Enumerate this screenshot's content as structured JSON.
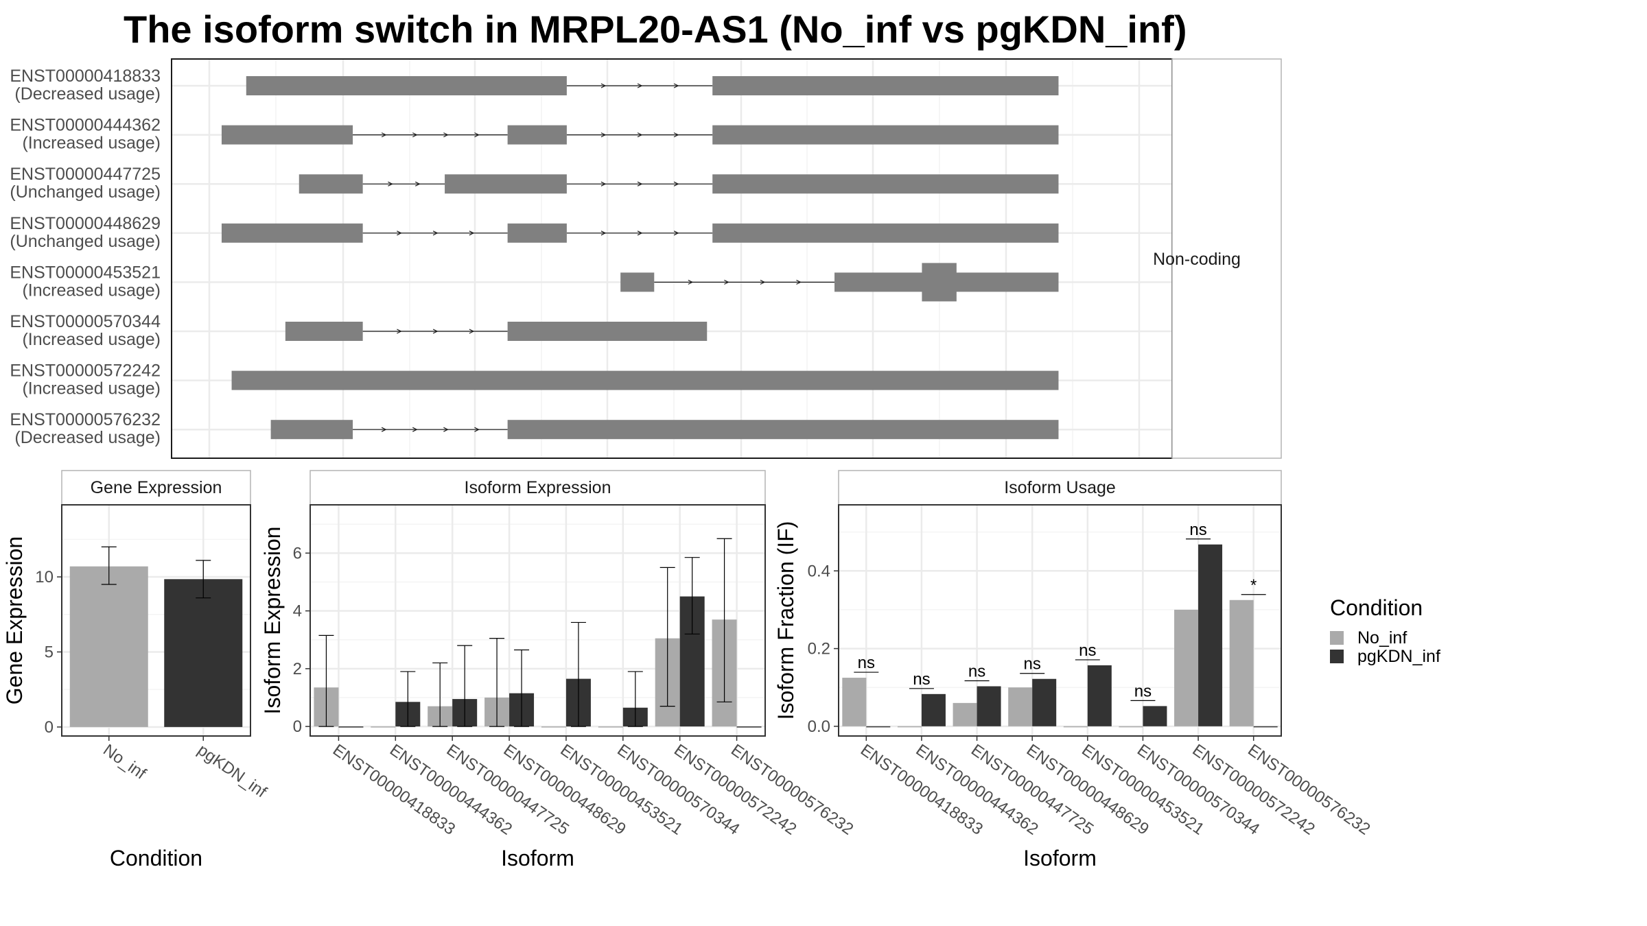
{
  "title": "The isoform switch in MRPL20-AS1 (No_inf vs pgKDN_inf)",
  "colors": {
    "No_inf": "#aaaaaa",
    "pgKDN_inf": "#333333",
    "transcript": "#808080",
    "grid": "#ebebeb",
    "panel_border": "#333333",
    "strip_border": "#b3b3b3"
  },
  "legend": {
    "title": "Condition",
    "items": [
      "No_inf",
      "pgKDN_inf"
    ]
  },
  "chart_data": [
    {
      "type": "transcript-structure",
      "name": "isoform-structures",
      "x_range": [
        0,
        1000
      ],
      "facet_label": "Non-coding",
      "isoforms": [
        {
          "id": "ENST00000418833",
          "usage": "(Decreased usage)",
          "exons": [
            [
              33,
              385
            ],
            [
              545,
              925
            ]
          ]
        },
        {
          "id": "ENST00000444362",
          "usage": "(Increased usage)",
          "exons": [
            [
              6,
              150
            ],
            [
              320,
              385
            ],
            [
              545,
              925
            ]
          ]
        },
        {
          "id": "ENST00000447725",
          "usage": "(Unchanged usage)",
          "exons": [
            [
              91,
              161
            ],
            [
              251,
              385
            ],
            [
              545,
              925
            ]
          ]
        },
        {
          "id": "ENST00000448629",
          "usage": "(Unchanged usage)",
          "exons": [
            [
              6,
              161
            ],
            [
              320,
              385
            ],
            [
              545,
              925
            ]
          ]
        },
        {
          "id": "ENST00000453521",
          "usage": "(Increased usage)",
          "exons": [
            [
              444,
              481
            ],
            [
              679,
              925
            ]
          ],
          "thick": [
            [
              775,
              813
            ]
          ]
        },
        {
          "id": "ENST00000570344",
          "usage": "(Increased usage)",
          "exons": [
            [
              76,
              161
            ],
            [
              320,
              539
            ]
          ]
        },
        {
          "id": "ENST00000572242",
          "usage": "(Increased usage)",
          "exons": [
            [
              17,
              925
            ]
          ]
        },
        {
          "id": "ENST00000576232",
          "usage": "(Decreased usage)",
          "exons": [
            [
              60,
              150
            ],
            [
              320,
              925
            ]
          ]
        }
      ]
    },
    {
      "type": "bar",
      "name": "gene-expression",
      "strip": "Gene Expression",
      "xlabel": "Condition",
      "ylabel": "Gene Expression",
      "ylim": [
        -0.6,
        14.8
      ],
      "yticks": [
        0,
        5,
        10
      ],
      "categories": [
        "No_inf",
        "pgKDN_inf"
      ],
      "values": [
        10.7,
        9.85
      ],
      "errors": [
        [
          9.5,
          12.0
        ],
        [
          8.6,
          11.1
        ]
      ]
    },
    {
      "type": "bar",
      "name": "isoform-expression",
      "strip": "Isoform Expression",
      "xlabel": "Isoform",
      "ylabel": "Isoform Expression",
      "ylim": [
        -0.33,
        7.67
      ],
      "yticks": [
        0,
        2,
        4,
        6
      ],
      "categories": [
        "ENST00000418833",
        "ENST00000444362",
        "ENST00000447725",
        "ENST00000448629",
        "ENST00000453521",
        "ENST00000570344",
        "ENST00000572242",
        "ENST00000576232"
      ],
      "series": [
        {
          "name": "No_inf",
          "values": [
            1.35,
            0.0,
            0.7,
            1.0,
            0.0,
            0.0,
            3.05,
            3.7
          ],
          "errors": [
            [
              0.0,
              3.15
            ],
            null,
            [
              0.0,
              2.2
            ],
            [
              0.0,
              3.05
            ],
            null,
            null,
            [
              0.7,
              5.5
            ],
            [
              0.85,
              6.5
            ]
          ]
        },
        {
          "name": "pgKDN_inf",
          "values": [
            0.0,
            0.85,
            0.95,
            1.15,
            1.65,
            0.65,
            4.5,
            0.0
          ],
          "errors": [
            null,
            [
              0.0,
              1.9
            ],
            [
              0.0,
              2.8
            ],
            [
              0.0,
              2.65
            ],
            [
              0.0,
              3.6
            ],
            [
              0.0,
              1.9
            ],
            [
              3.2,
              5.85
            ],
            null
          ]
        }
      ]
    },
    {
      "type": "bar",
      "name": "isoform-usage",
      "strip": "Isoform Usage",
      "xlabel": "Isoform",
      "ylabel": "Isoform Fraction (IF)",
      "ylim": [
        -0.025,
        0.57
      ],
      "yticks": [
        0.0,
        0.2,
        0.4
      ],
      "categories": [
        "ENST00000418833",
        "ENST00000444362",
        "ENST00000447725",
        "ENST00000448629",
        "ENST00000453521",
        "ENST00000570344",
        "ENST00000572242",
        "ENST00000576232"
      ],
      "series": [
        {
          "name": "No_inf",
          "values": [
            0.125,
            0.0,
            0.06,
            0.1,
            0.0,
            0.0,
            0.3,
            0.325
          ]
        },
        {
          "name": "pgKDN_inf",
          "values": [
            0.0,
            0.083,
            0.103,
            0.122,
            0.157,
            0.052,
            0.468,
            0.0
          ]
        }
      ],
      "significance": [
        "ns",
        "ns",
        "ns",
        "ns",
        "ns",
        "ns",
        "ns",
        "*"
      ]
    }
  ]
}
